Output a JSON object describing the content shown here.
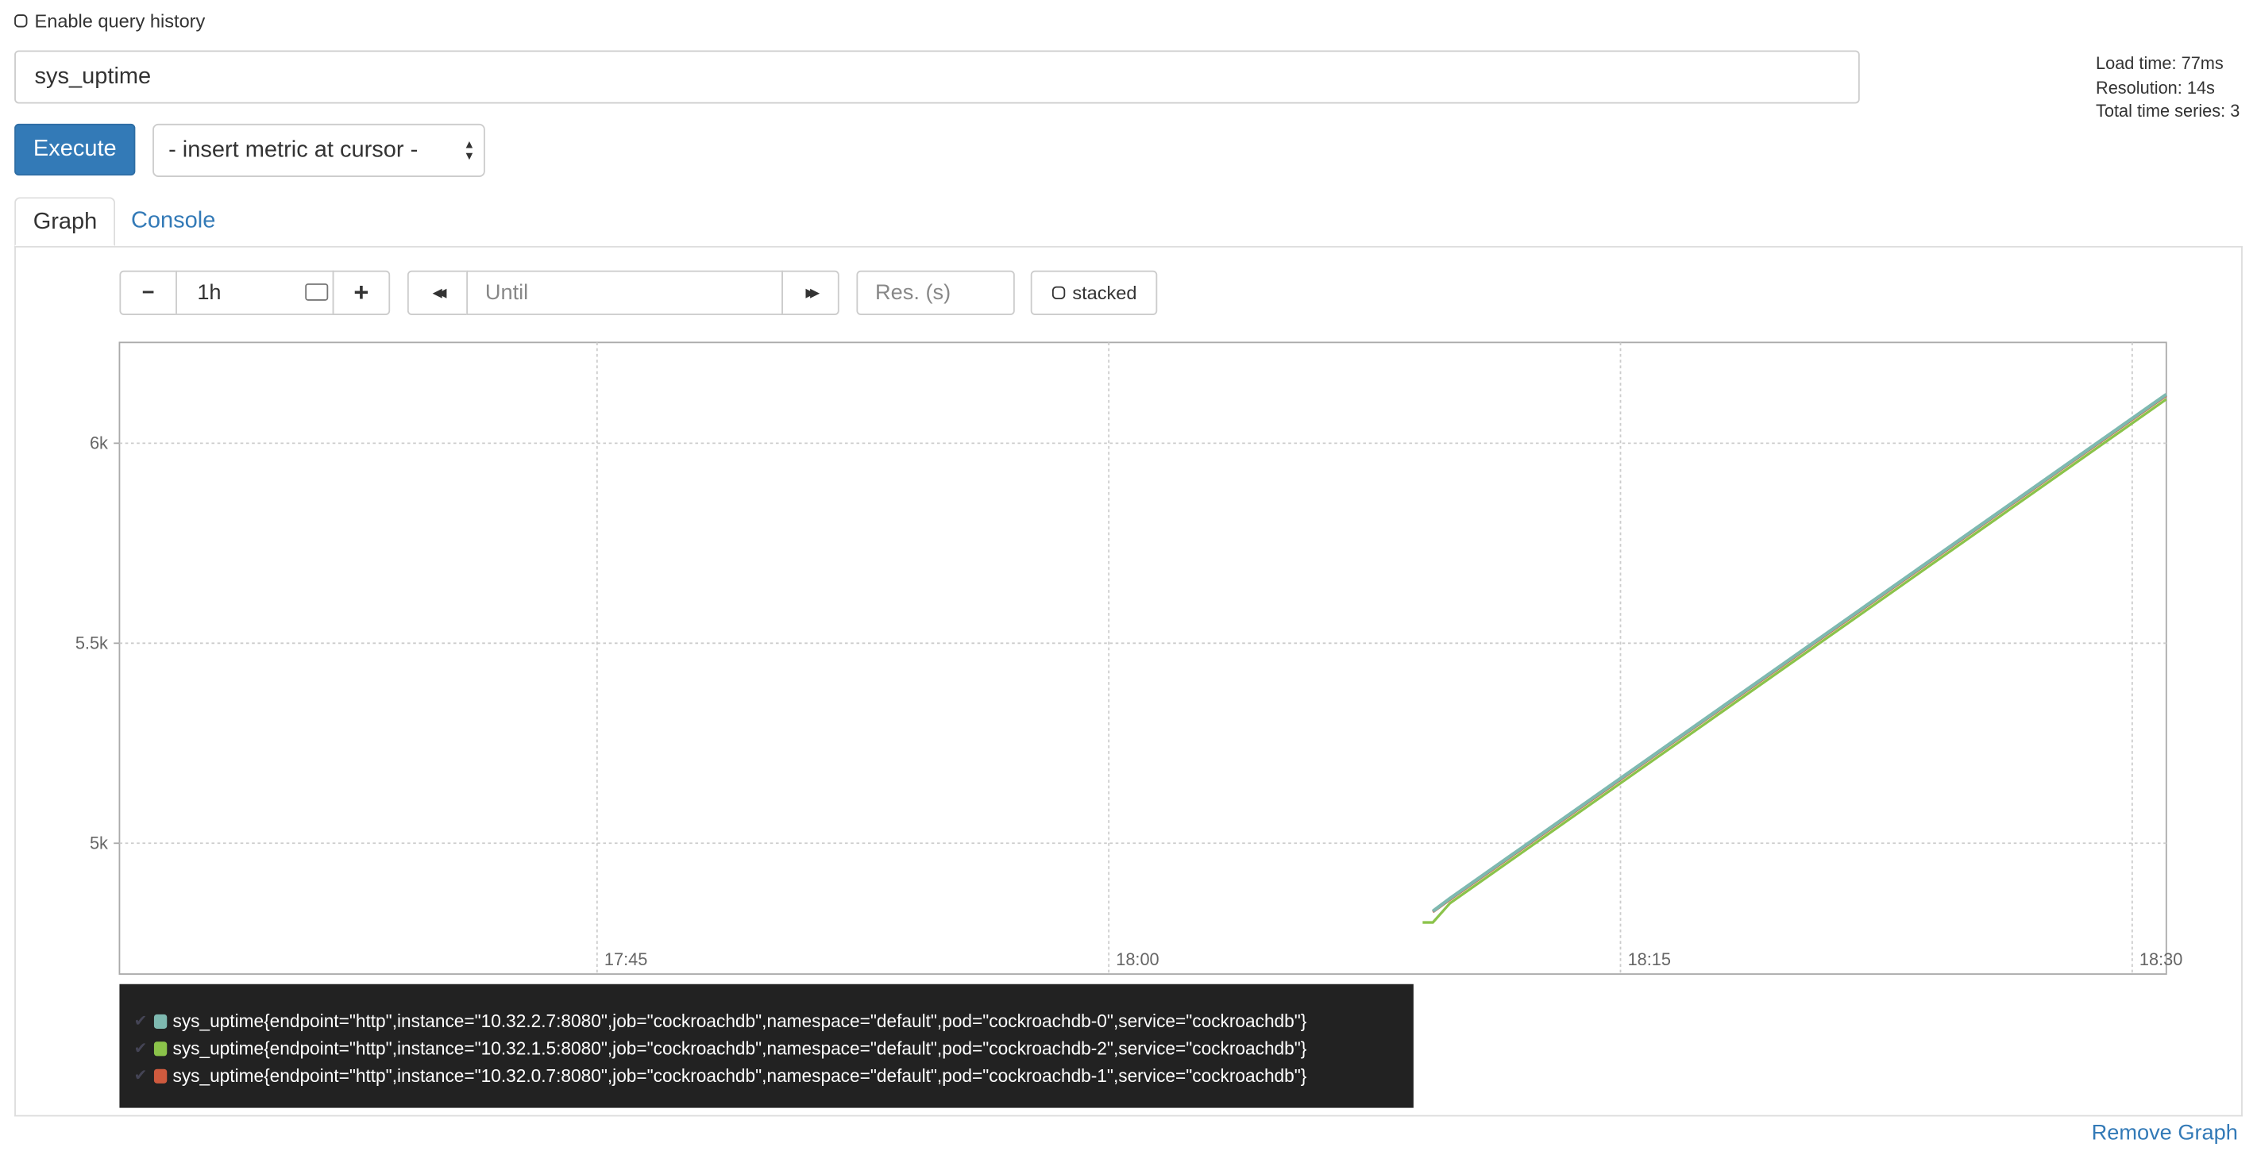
{
  "header": {
    "history_label": "Enable query history",
    "expression": "sys_uptime",
    "execute_label": "Execute",
    "insert_metric": "- insert metric at cursor -",
    "info": [
      "Load time: 77ms",
      "Resolution: 14s",
      "Total time series: 3"
    ]
  },
  "tabs": [
    {
      "label": "Graph",
      "active": true
    },
    {
      "label": "Console",
      "active": false
    }
  ],
  "controls": {
    "minus": "−",
    "range": "1h",
    "plus": "+",
    "back": "◀◀",
    "until_placeholder": "Until",
    "forward": "▶▶",
    "res_placeholder": "Res. (s)",
    "stacked_label": "stacked"
  },
  "remove_graph": "Remove Graph",
  "colors": {
    "accent": "#337ab7",
    "legend_bg": "#222222"
  },
  "chart_data": {
    "type": "line",
    "xlim": [
      "17:31",
      "18:31"
    ],
    "ylim": [
      4673,
      6252
    ],
    "grid": true,
    "x_ticks": [
      "17:45",
      "18:00",
      "18:15",
      "18:30"
    ],
    "y_ticks": [
      {
        "value": 5000,
        "label": "5k"
      },
      {
        "value": 5500,
        "label": "5.5k"
      },
      {
        "value": 6000,
        "label": "6k"
      }
    ],
    "legend_placement": "bottom",
    "series": [
      {
        "name": "sys_uptime{endpoint=\"http\",instance=\"10.32.2.7:8080\",job=\"cockroachdb\",namespace=\"default\",pod=\"cockroachdb-0\",service=\"cockroachdb\"}",
        "color": "#7eb9b0",
        "points": [
          [
            "18:09.5",
            4830
          ],
          [
            "18:10",
            4862
          ],
          [
            "18:12",
            4982
          ],
          [
            "18:14",
            5102
          ],
          [
            "18:16",
            5222
          ],
          [
            "18:18",
            5342
          ],
          [
            "18:20",
            5462
          ],
          [
            "18:22",
            5582
          ],
          [
            "18:24",
            5702
          ],
          [
            "18:26",
            5822
          ],
          [
            "18:28",
            5942
          ],
          [
            "18:30",
            6062
          ],
          [
            "18:31",
            6122
          ]
        ]
      },
      {
        "name": "sys_uptime{endpoint=\"http\",instance=\"10.32.1.5:8080\",job=\"cockroachdb\",namespace=\"default\",pod=\"cockroachdb-2\",service=\"cockroachdb\"}",
        "color": "#8bc34a",
        "points": [
          [
            "18:09.2",
            4802
          ],
          [
            "18:09.5",
            4802
          ],
          [
            "18:10",
            4850
          ],
          [
            "18:12",
            4970
          ],
          [
            "18:14",
            5090
          ],
          [
            "18:16",
            5210
          ],
          [
            "18:18",
            5330
          ],
          [
            "18:20",
            5450
          ],
          [
            "18:22",
            5570
          ],
          [
            "18:24",
            5690
          ],
          [
            "18:26",
            5810
          ],
          [
            "18:28",
            5930
          ],
          [
            "18:30",
            6050
          ],
          [
            "18:31",
            6110
          ]
        ]
      },
      {
        "name": "sys_uptime{endpoint=\"http\",instance=\"10.32.0.7:8080\",job=\"cockroachdb\",namespace=\"default\",pod=\"cockroachdb-1\",service=\"cockroachdb\"}",
        "color": "#cf5a3e",
        "points": [
          [
            "18:09.5",
            4828
          ],
          [
            "18:10",
            4859
          ],
          [
            "18:12",
            4979
          ],
          [
            "18:14",
            5099
          ],
          [
            "18:16",
            5219
          ],
          [
            "18:18",
            5339
          ],
          [
            "18:20",
            5459
          ],
          [
            "18:22",
            5579
          ],
          [
            "18:24",
            5699
          ],
          [
            "18:26",
            5819
          ],
          [
            "18:28",
            5939
          ],
          [
            "18:30",
            6059
          ],
          [
            "18:31",
            6119
          ]
        ]
      }
    ]
  }
}
